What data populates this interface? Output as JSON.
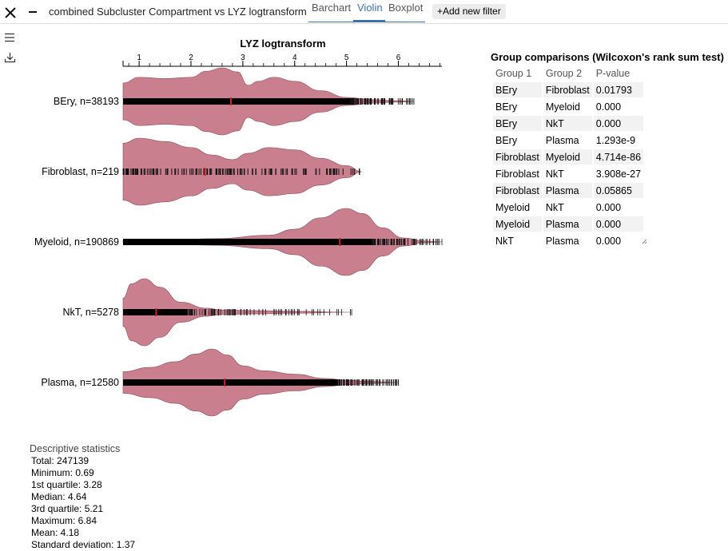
{
  "toolbar": {
    "close_icon": "close-icon",
    "minimize_icon": "minus-icon",
    "title": "combined Subcluster Compartment vs LYZ logtransform",
    "tabs": [
      {
        "label": "Barchart",
        "active": false
      },
      {
        "label": "Violin",
        "active": true
      },
      {
        "label": "Boxplot",
        "active": false
      }
    ],
    "add_filter_label": "+Add new filter",
    "accent_color": "#3a6fb0"
  },
  "sidebar": {
    "menu_icon": "hamburger-menu-icon",
    "download_icon": "download-icon"
  },
  "chart_data": {
    "type": "violin",
    "title": "LYZ logtransform",
    "xlim": [
      0.69,
      6.84
    ],
    "ticks": [
      1,
      2,
      3,
      4,
      5,
      6
    ],
    "violin_color": "#c97f8e",
    "median_color": "#cc2222",
    "series": [
      {
        "label": "BEry, n=38193",
        "median": 2.77,
        "points_min": 0.69,
        "points_max": 6.3,
        "density": [
          [
            0.69,
            0.55
          ],
          [
            1.0,
            0.72
          ],
          [
            1.5,
            0.68
          ],
          [
            2.0,
            0.72
          ],
          [
            2.3,
            0.9
          ],
          [
            2.6,
            1.0
          ],
          [
            2.9,
            0.88
          ],
          [
            3.1,
            0.48
          ],
          [
            3.3,
            0.6
          ],
          [
            3.6,
            0.72
          ],
          [
            4.0,
            0.6
          ],
          [
            4.5,
            0.32
          ],
          [
            5.0,
            0.12
          ],
          [
            5.5,
            0.05
          ],
          [
            6.0,
            0.02
          ],
          [
            6.3,
            0.0
          ]
        ]
      },
      {
        "label": "Fibroblast, n=219",
        "median": 2.27,
        "points_min": 0.69,
        "points_max": 5.3,
        "density": [
          [
            0.69,
            0.85
          ],
          [
            1.0,
            1.0
          ],
          [
            1.5,
            0.9
          ],
          [
            2.0,
            0.72
          ],
          [
            2.4,
            0.5
          ],
          [
            2.8,
            0.36
          ],
          [
            3.1,
            0.55
          ],
          [
            3.5,
            0.72
          ],
          [
            4.0,
            0.65
          ],
          [
            4.5,
            0.4
          ],
          [
            5.0,
            0.18
          ],
          [
            5.3,
            0.0
          ]
        ]
      },
      {
        "label": "Myeloid, n=190869",
        "median": 4.87,
        "points_min": 0.69,
        "points_max": 6.84,
        "density": [
          [
            0.69,
            0.05
          ],
          [
            1.5,
            0.06
          ],
          [
            2.5,
            0.1
          ],
          [
            3.5,
            0.2
          ],
          [
            4.0,
            0.38
          ],
          [
            4.5,
            0.72
          ],
          [
            5.0,
            1.0
          ],
          [
            5.3,
            0.85
          ],
          [
            5.7,
            0.42
          ],
          [
            6.1,
            0.12
          ],
          [
            6.5,
            0.03
          ],
          [
            6.84,
            0.0
          ]
        ]
      },
      {
        "label": "NkT, n=5278",
        "median": 1.33,
        "points_min": 0.69,
        "points_max": 5.1,
        "density": [
          [
            0.69,
            0.42
          ],
          [
            0.85,
            0.85
          ],
          [
            1.1,
            1.0
          ],
          [
            1.4,
            0.75
          ],
          [
            1.8,
            0.3
          ],
          [
            2.3,
            0.12
          ],
          [
            2.6,
            0.07
          ],
          [
            3.2,
            0.05
          ],
          [
            4.0,
            0.03
          ],
          [
            5.1,
            0.0
          ]
        ]
      },
      {
        "label": "Plasma, n=12580",
        "median": 2.65,
        "points_min": 0.69,
        "points_max": 6.0,
        "density": [
          [
            0.69,
            0.32
          ],
          [
            1.2,
            0.45
          ],
          [
            1.7,
            0.62
          ],
          [
            2.1,
            0.85
          ],
          [
            2.4,
            1.0
          ],
          [
            2.7,
            0.82
          ],
          [
            3.0,
            0.5
          ],
          [
            3.4,
            0.35
          ],
          [
            4.0,
            0.25
          ],
          [
            4.6,
            0.12
          ],
          [
            5.0,
            0.07
          ],
          [
            5.5,
            0.03
          ],
          [
            6.0,
            0.0
          ]
        ]
      }
    ]
  },
  "comparisons": {
    "title": "Group comparisons (Wilcoxon's rank sum test)",
    "headers": [
      "Group 1",
      "Group 2",
      "P-value"
    ],
    "rows": [
      [
        "BEry",
        "Fibroblast",
        "0.01793"
      ],
      [
        "BEry",
        "Myeloid",
        "0.000"
      ],
      [
        "BEry",
        "NkT",
        "0.000"
      ],
      [
        "BEry",
        "Plasma",
        "1.293e-9"
      ],
      [
        "Fibroblast",
        "Myeloid",
        "4.714e-86"
      ],
      [
        "Fibroblast",
        "NkT",
        "3.908e-27"
      ],
      [
        "Fibroblast",
        "Plasma",
        "0.05865"
      ],
      [
        "Myeloid",
        "NkT",
        "0.000"
      ],
      [
        "Myeloid",
        "Plasma",
        "0.000"
      ],
      [
        "NkT",
        "Plasma",
        "0.000"
      ]
    ]
  },
  "descriptive": {
    "title": "Descriptive statistics",
    "lines": [
      "Total: 247139",
      "Minimum: 0.69",
      "1st quartile: 3.28",
      "Median: 4.64",
      "3rd quartile: 5.21",
      "Maximum: 6.84",
      "Mean: 4.18",
      "Standard deviation: 1.37"
    ]
  }
}
